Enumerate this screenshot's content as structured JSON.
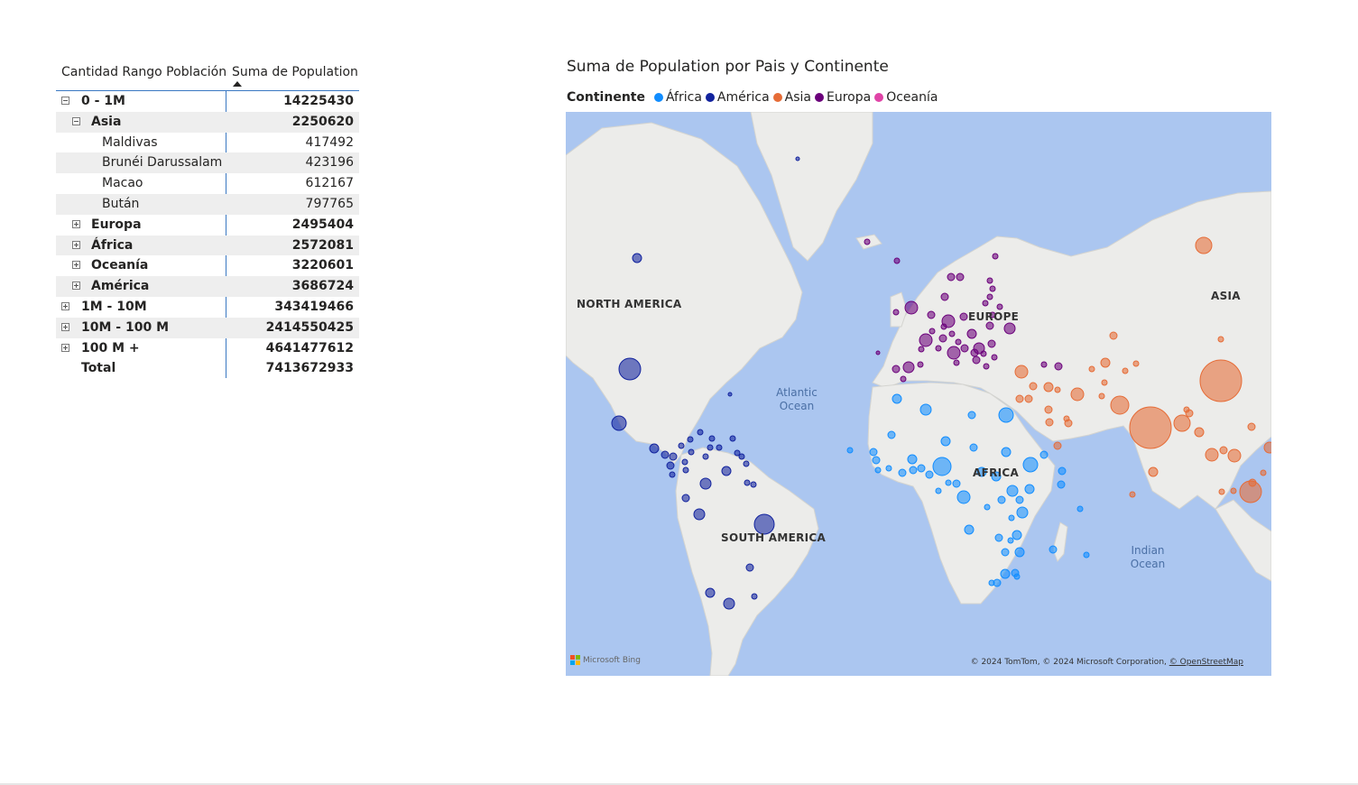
{
  "matrix": {
    "col1_header": "Cantidad Rango Población",
    "col2_header": "Suma de Population",
    "rows": [
      {
        "label": "0 - 1M",
        "value": "14225430"
      },
      {
        "label": "Asia",
        "value": "2250620"
      },
      {
        "label": "Maldivas",
        "value": "417492"
      },
      {
        "label": "Brunéi Darussalam",
        "value": "423196"
      },
      {
        "label": "Macao",
        "value": "612167"
      },
      {
        "label": "Bután",
        "value": "797765"
      },
      {
        "label": "Europa",
        "value": "2495404"
      },
      {
        "label": "África",
        "value": "2572081"
      },
      {
        "label": "Oceanía",
        "value": "3220601"
      },
      {
        "label": "América",
        "value": "3686724"
      },
      {
        "label": "1M - 10M",
        "value": "343419466"
      },
      {
        "label": "10M - 100 M",
        "value": "2414550425"
      },
      {
        "label": "100 M +",
        "value": "4641477612"
      },
      {
        "label": "Total",
        "value": "7413672933"
      }
    ]
  },
  "map": {
    "title": "Suma de Population por Pais y Continente",
    "legend_title": "Continente",
    "legend": [
      {
        "name": "África",
        "color": "#118DFF"
      },
      {
        "name": "América",
        "color": "#12239E"
      },
      {
        "name": "Asia",
        "color": "#E66C37"
      },
      {
        "name": "Europa",
        "color": "#6B007B"
      },
      {
        "name": "Oceanía",
        "color": "#E044A7"
      }
    ],
    "labels": {
      "north_america": "NORTH AMERICA",
      "south_america": "SOUTH AMERICA",
      "europe": "EUROPE",
      "africa": "AFRICA",
      "asia": "ASIA",
      "atlantic": "Atlantic Ocean",
      "indian": "Indian Ocean"
    },
    "bing_logo": "Microsoft Bing",
    "copyright": "© 2024 TomTom, © 2024 Microsoft Corporation, ",
    "copyright_link": "© OpenStreetMap"
  }
}
